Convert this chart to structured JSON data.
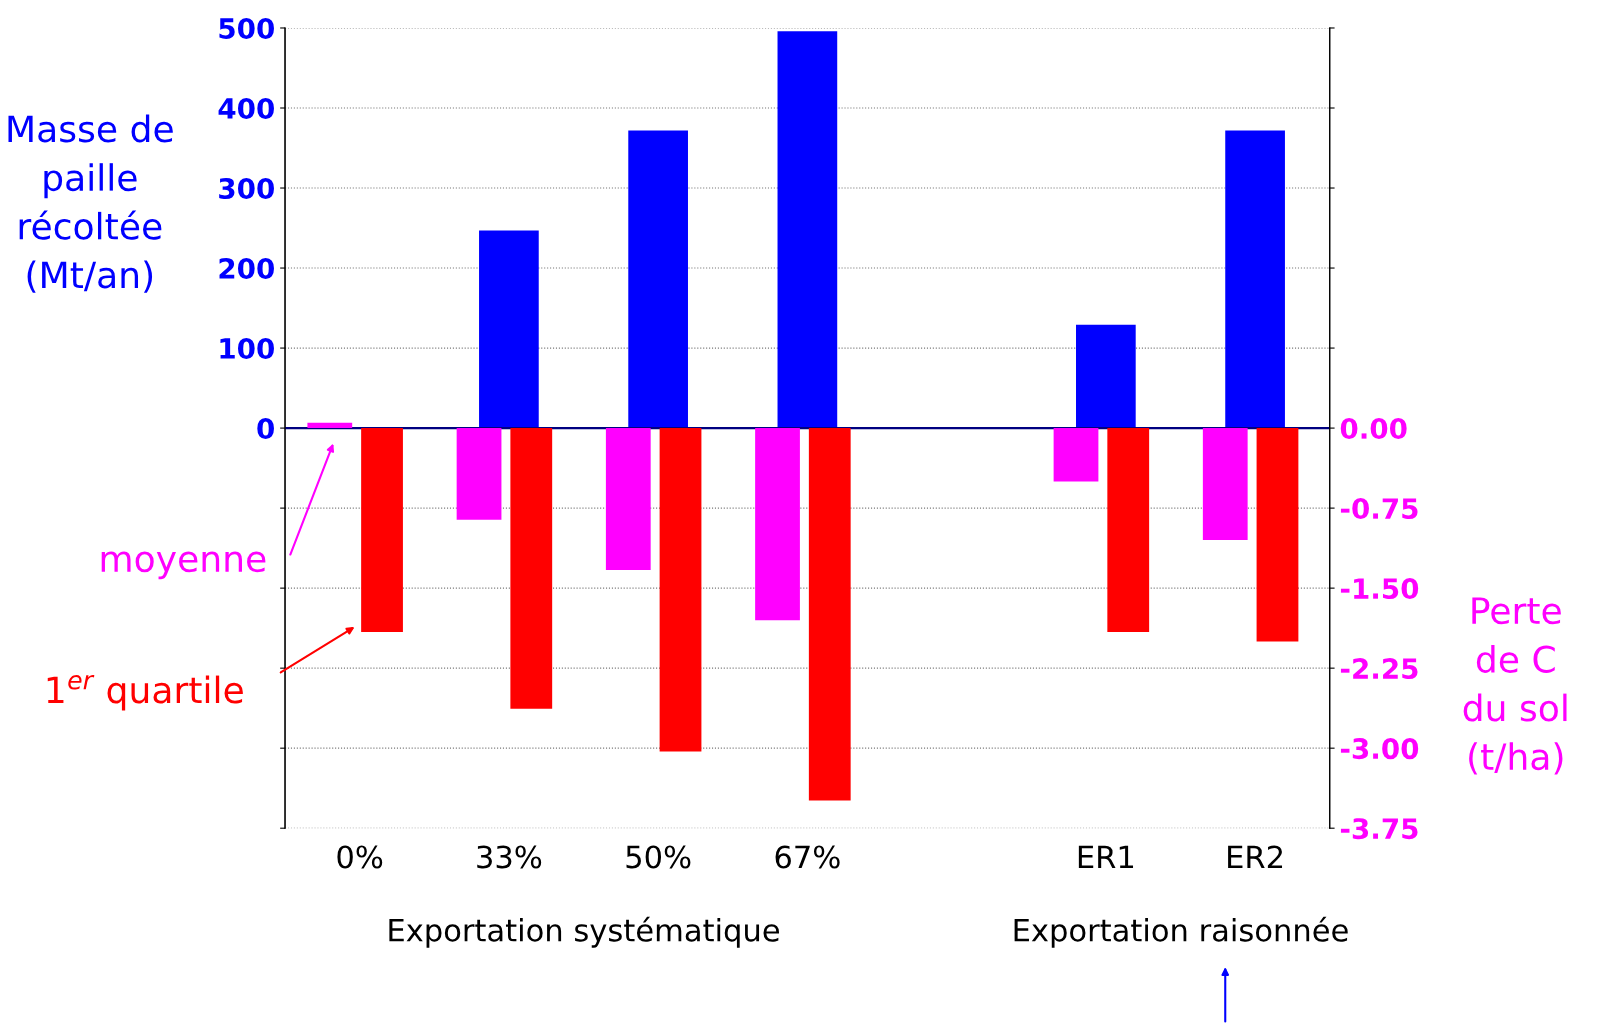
{
  "chart_data": {
    "type": "bar",
    "ylabel": "Masse de\npaille\nrécoltée\n(Mt/an)",
    "y2label": "Perte\nde C\ndu sol\n(t/ha)",
    "categories": [
      "0%",
      "33%",
      "50%",
      "67%",
      null,
      "ER1",
      "ER2"
    ],
    "series": [
      {
        "color": "#0000ff",
        "values": [
          0,
          247,
          372,
          496,
          null,
          129,
          372
        ]
      },
      {
        "name": "moyenne",
        "color": "#ff00ff",
        "axis": "y2",
        "values": [
          0.05,
          -0.86,
          -1.33,
          -1.8,
          null,
          -0.5,
          -1.05
        ]
      },
      {
        "name": "1$^{er}$ quartile",
        "color": "#ff0000",
        "axis": "y2",
        "values": [
          -1.91,
          -2.63,
          -3.03,
          -3.49,
          null,
          -1.91,
          -2.0
        ]
      }
    ],
    "ylim": [
      -500,
      500
    ],
    "yticks": [
      {
        "value": -500,
        "label": null
      },
      {
        "value": -400,
        "label": null
      },
      {
        "value": -300,
        "label": null
      },
      {
        "value": -200,
        "label": null
      },
      {
        "value": -100,
        "label": null
      },
      0,
      100,
      200,
      300,
      400,
      500
    ],
    "y2lim": [
      -3.75,
      3.75
    ],
    "y2ticks": [
      {
        "value": -3.75,
        "label": "-3.75"
      },
      {
        "value": -3.0,
        "label": "-3.00"
      },
      {
        "value": -2.25,
        "label": "-2.25"
      },
      {
        "value": -1.5,
        "label": "-1.50"
      },
      {
        "value": -0.75,
        "label": "-0.75"
      },
      {
        "value": 0,
        "label": "0.00"
      },
      {
        "value": 0.75,
        "label": null
      },
      {
        "value": 1.5,
        "label": null
      },
      {
        "value": 2.25,
        "label": null
      },
      {
        "value": 3.0,
        "label": null
      },
      {
        "value": 3.75,
        "label": null
      }
    ],
    "annotations": [
      "Exportation systématique",
      "Exportation raisonnée"
    ],
    "ref_lines": [
      {
        "axis": "y",
        "value": 0,
        "color": "#000080"
      }
    ],
    "grid": "y",
    "legend": false
  }
}
